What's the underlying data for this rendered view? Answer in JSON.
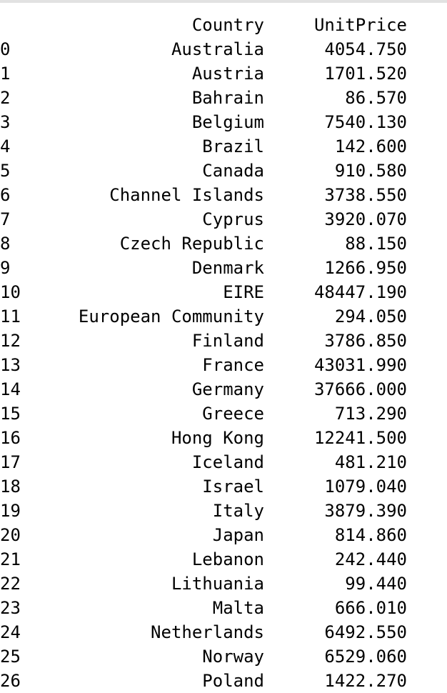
{
  "columns": {
    "country": "Country",
    "unit_price": "UnitPrice"
  },
  "rows": [
    {
      "index": "0",
      "country": "Australia",
      "unit_price": "4054.750"
    },
    {
      "index": "1",
      "country": "Austria",
      "unit_price": "1701.520"
    },
    {
      "index": "2",
      "country": "Bahrain",
      "unit_price": "86.570"
    },
    {
      "index": "3",
      "country": "Belgium",
      "unit_price": "7540.130"
    },
    {
      "index": "4",
      "country": "Brazil",
      "unit_price": "142.600"
    },
    {
      "index": "5",
      "country": "Canada",
      "unit_price": "910.580"
    },
    {
      "index": "6",
      "country": "Channel Islands",
      "unit_price": "3738.550"
    },
    {
      "index": "7",
      "country": "Cyprus",
      "unit_price": "3920.070"
    },
    {
      "index": "8",
      "country": "Czech Republic",
      "unit_price": "88.150"
    },
    {
      "index": "9",
      "country": "Denmark",
      "unit_price": "1266.950"
    },
    {
      "index": "10",
      "country": "EIRE",
      "unit_price": "48447.190"
    },
    {
      "index": "11",
      "country": "European Community",
      "unit_price": "294.050"
    },
    {
      "index": "12",
      "country": "Finland",
      "unit_price": "3786.850"
    },
    {
      "index": "13",
      "country": "France",
      "unit_price": "43031.990"
    },
    {
      "index": "14",
      "country": "Germany",
      "unit_price": "37666.000"
    },
    {
      "index": "15",
      "country": "Greece",
      "unit_price": "713.290"
    },
    {
      "index": "16",
      "country": "Hong Kong",
      "unit_price": "12241.500"
    },
    {
      "index": "17",
      "country": "Iceland",
      "unit_price": "481.210"
    },
    {
      "index": "18",
      "country": "Israel",
      "unit_price": "1079.040"
    },
    {
      "index": "19",
      "country": "Italy",
      "unit_price": "3879.390"
    },
    {
      "index": "20",
      "country": "Japan",
      "unit_price": "814.860"
    },
    {
      "index": "21",
      "country": "Lebanon",
      "unit_price": "242.440"
    },
    {
      "index": "22",
      "country": "Lithuania",
      "unit_price": "99.440"
    },
    {
      "index": "23",
      "country": "Malta",
      "unit_price": "666.010"
    },
    {
      "index": "24",
      "country": "Netherlands",
      "unit_price": "6492.550"
    },
    {
      "index": "25",
      "country": "Norway",
      "unit_price": "6529.060"
    },
    {
      "index": "26",
      "country": "Poland",
      "unit_price": "1422.270"
    }
  ]
}
